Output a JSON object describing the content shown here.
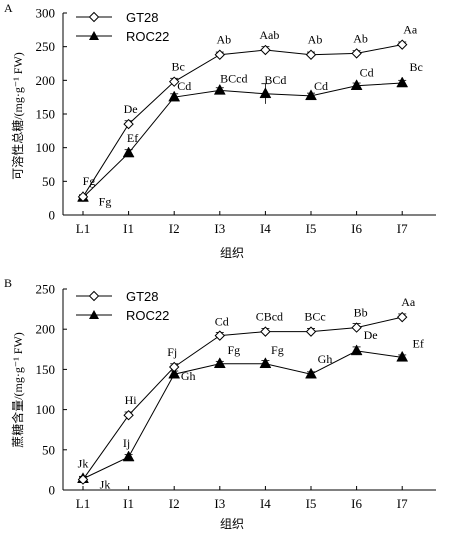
{
  "chart_data": [
    {
      "type": "line",
      "panel": "A",
      "categories": [
        "L1",
        "I1",
        "I2",
        "I3",
        "I4",
        "I5",
        "I6",
        "I7"
      ],
      "xlabel": "组织",
      "ylabel": "可溶性总糖/(mg·g⁻¹ FW)",
      "ylim": [
        0,
        300
      ],
      "yticks": [
        0,
        50,
        100,
        150,
        200,
        250,
        300
      ],
      "grid": false,
      "legend_position": "top-left",
      "series": [
        {
          "name": "GT28",
          "marker": "open-diamond",
          "values": [
            27,
            135,
            198,
            238,
            245,
            238,
            240,
            253
          ],
          "labels": [
            "Fg",
            "De",
            "Bc",
            "Ab",
            "Aab",
            "Ab",
            "Ab",
            "Aa"
          ],
          "error": [
            3,
            5,
            5,
            4,
            5,
            4,
            4,
            4
          ]
        },
        {
          "name": "ROC22",
          "marker": "filled-triangle",
          "values": [
            26,
            92,
            175,
            185,
            180,
            177,
            192,
            196
          ],
          "labels": [
            "Fg",
            "Ef",
            "Cd",
            "BCcd",
            "BCd",
            "Cd",
            "Cd",
            "Bc"
          ],
          "error": [
            3,
            5,
            5,
            4,
            15,
            4,
            4,
            4
          ]
        }
      ]
    },
    {
      "type": "line",
      "panel": "B",
      "categories": [
        "L1",
        "I1",
        "I2",
        "I3",
        "I4",
        "I5",
        "I6",
        "I7"
      ],
      "xlabel": "组织",
      "ylabel": "蔗糖含量/(mg·g⁻¹ FW)",
      "ylim": [
        0,
        250
      ],
      "yticks": [
        0,
        50,
        100,
        150,
        200,
        250
      ],
      "grid": false,
      "legend_position": "top-left",
      "series": [
        {
          "name": "GT28",
          "marker": "open-diamond",
          "values": [
            13,
            93,
            153,
            192,
            197,
            197,
            202,
            215
          ],
          "labels": [
            "Jk",
            "Hi",
            "Fj",
            "Cd",
            "CBcd",
            "BCc",
            "Bb",
            "Aa"
          ],
          "error": [
            3,
            4,
            4,
            4,
            4,
            4,
            5,
            4
          ]
        },
        {
          "name": "ROC22",
          "marker": "filled-triangle",
          "values": [
            14,
            41,
            144,
            157,
            157,
            144,
            173,
            165
          ],
          "labels": [
            "Jk",
            "Ij",
            "Gh",
            "Fg",
            "Fg",
            "Gh",
            "De",
            "Ef"
          ],
          "error": [
            3,
            3,
            4,
            3,
            4,
            3,
            5,
            3
          ]
        }
      ]
    }
  ]
}
